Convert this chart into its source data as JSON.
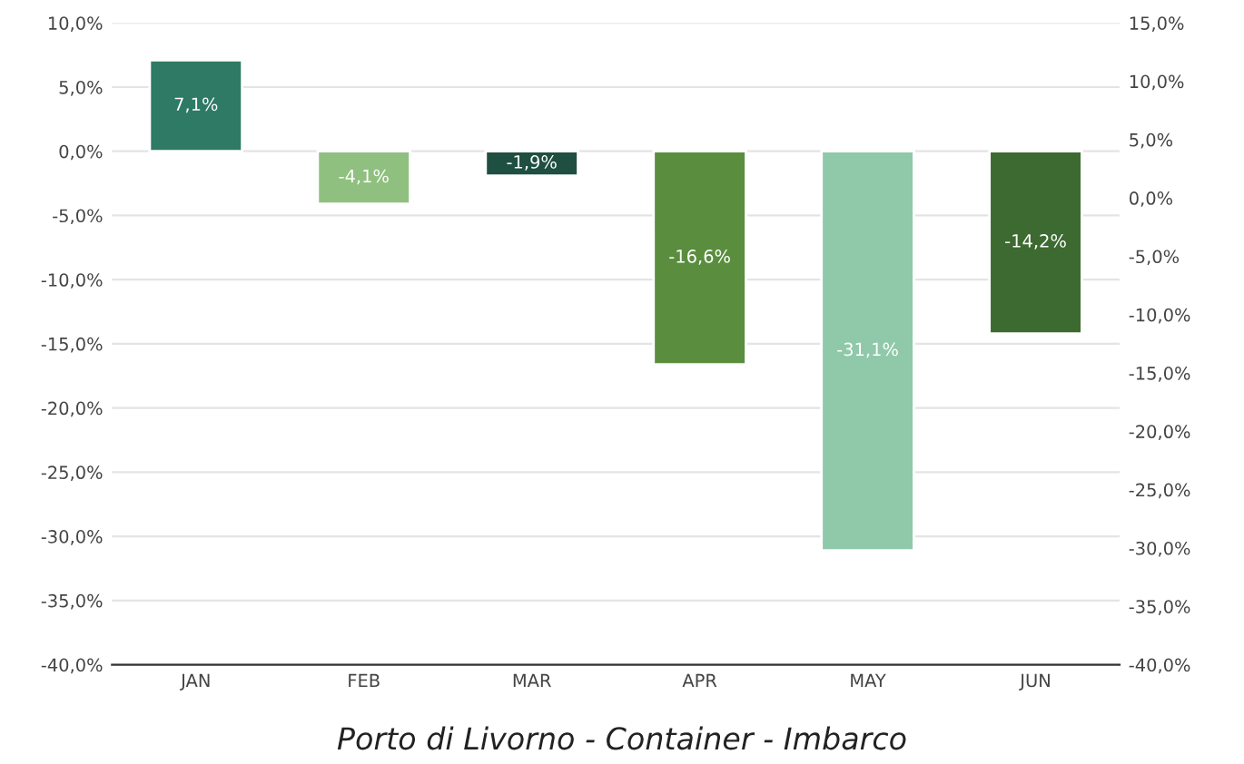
{
  "chart_data": {
    "type": "bar",
    "title": "Porto di Livorno - Container - Imbarco",
    "categories": [
      "JAN",
      "FEB",
      "MAR",
      "APR",
      "MAY",
      "JUN"
    ],
    "values": [
      7.1,
      -4.1,
      -1.9,
      -16.6,
      -31.1,
      -14.2
    ],
    "colors": [
      "#2e7a64",
      "#8fc07f",
      "#1f4f40",
      "#5a8e3e",
      "#8fc9aa",
      "#3d6a30"
    ],
    "value_labels": [
      "7,1%",
      "-4,1%",
      "-1,9%",
      "-16,6%",
      "-31,1%",
      "-14,2%"
    ],
    "ylim": [
      -40,
      10
    ],
    "yticks": [
      {
        "value": 10,
        "label": "10,0%"
      },
      {
        "value": 5,
        "label": "5,0%"
      },
      {
        "value": 0,
        "label": "0,0%"
      },
      {
        "value": -5,
        "label": "-5,0%"
      },
      {
        "value": -10,
        "label": "-10,0%"
      },
      {
        "value": -15,
        "label": "-15,0%"
      },
      {
        "value": -20,
        "label": "-20,0%"
      },
      {
        "value": -25,
        "label": "-25,0%"
      },
      {
        "value": -30,
        "label": "-30,0%"
      },
      {
        "value": -35,
        "label": "-35,0%"
      },
      {
        "value": -40,
        "label": "-40,0%"
      }
    ],
    "y2lim": [
      -40,
      15
    ],
    "y2ticks": [
      {
        "value": 15,
        "label": "15,0%"
      },
      {
        "value": 10,
        "label": "10,0%"
      },
      {
        "value": 5,
        "label": "5,0%"
      },
      {
        "value": 0,
        "label": "0,0%"
      },
      {
        "value": -5,
        "label": "-5,0%"
      },
      {
        "value": -10,
        "label": "-10,0%"
      },
      {
        "value": -15,
        "label": "-15,0%"
      },
      {
        "value": -20,
        "label": "-20,0%"
      },
      {
        "value": -25,
        "label": "-25,0%"
      },
      {
        "value": -30,
        "label": "-30,0%"
      },
      {
        "value": -35,
        "label": "-35,0%"
      },
      {
        "value": -40,
        "label": "-40,0%"
      }
    ],
    "grid": "y",
    "legend": false
  }
}
